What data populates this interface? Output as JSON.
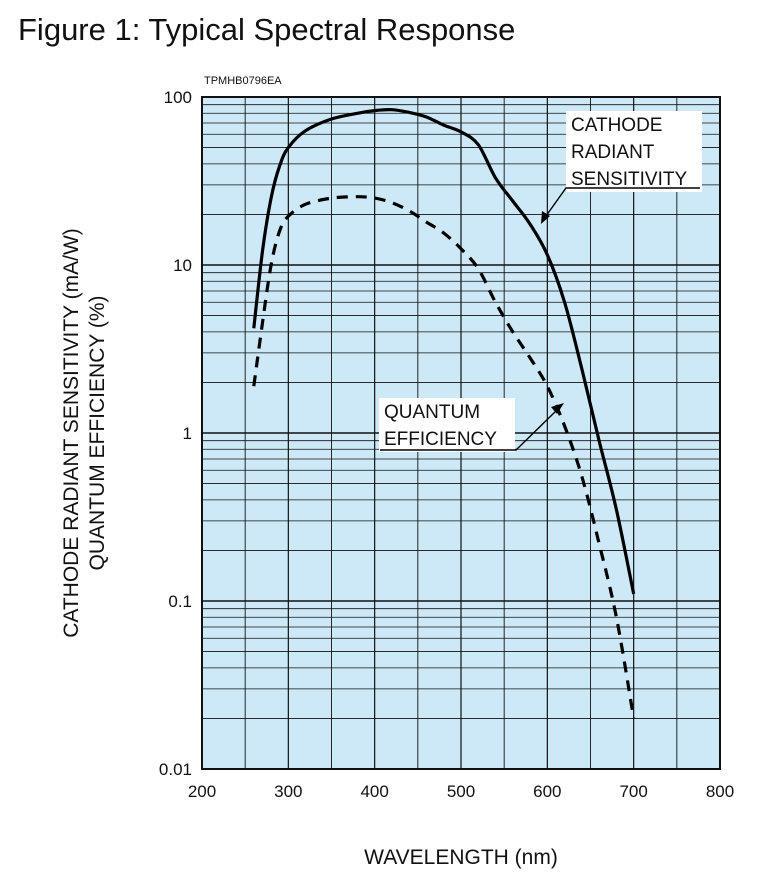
{
  "figure_title": "Figure 1: Typical Spectral Response",
  "chart_data": {
    "type": "line",
    "figure_code": "TPMHB0796EA",
    "xlabel": "WAVELENGTH (nm)",
    "ylabel_lines": [
      "CATHODE RADIANT SENSITIVITY (mA/W)",
      "QUANTUM EFFICIENCY (%)"
    ],
    "xlim": [
      200,
      800
    ],
    "ylim": [
      0.01,
      100
    ],
    "yscale": "log",
    "grid": true,
    "x_ticks": [
      200,
      300,
      400,
      500,
      600,
      700,
      800
    ],
    "y_ticks": [
      0.01,
      0.1,
      1,
      10,
      100
    ],
    "x_tick_labels": [
      "200",
      "300",
      "400",
      "500",
      "600",
      "700",
      "800"
    ],
    "y_tick_labels": [
      "0.01",
      "0.1",
      "1",
      "10",
      "100"
    ],
    "colors": {
      "plot_background": "#cde9f8",
      "grid": "#111111",
      "curve": "#000000",
      "label_background": "#ffffff"
    },
    "series": [
      {
        "name": "CATHODE RADIANT SENSITIVITY",
        "label_lines": [
          "CATHODE",
          "RADIANT",
          "SENSITIVITY"
        ],
        "style": "solid",
        "x": [
          260,
          270,
          280,
          290,
          300,
          320,
          350,
          380,
          400,
          420,
          440,
          460,
          480,
          500,
          520,
          540,
          560,
          580,
          600,
          620,
          640,
          660,
          680,
          700
        ],
        "y": [
          4.2,
          12,
          25,
          39,
          50,
          63,
          74,
          80,
          83,
          84,
          81,
          76,
          68,
          62,
          52,
          33,
          24,
          17.5,
          11.5,
          6,
          2.4,
          0.9,
          0.35,
          0.11
        ]
      },
      {
        "name": "QUANTUM EFFICIENCY",
        "label_lines": [
          "QUANTUM",
          "EFFICIENCY"
        ],
        "style": "dashed",
        "x": [
          260,
          270,
          280,
          290,
          300,
          320,
          350,
          380,
          400,
          420,
          440,
          460,
          480,
          500,
          520,
          540,
          560,
          580,
          600,
          620,
          640,
          660,
          680,
          700
        ],
        "y": [
          1.9,
          4.5,
          10,
          16,
          19.5,
          23,
          25,
          25.5,
          25,
          23.5,
          21,
          18,
          15.5,
          12.5,
          9.5,
          6,
          4,
          2.8,
          1.9,
          1.1,
          0.55,
          0.22,
          0.08,
          0.02
        ]
      }
    ]
  }
}
